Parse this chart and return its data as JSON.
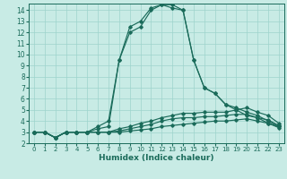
{
  "xlabel": "Humidex (Indice chaleur)",
  "bg_color": "#c8ebe5",
  "grid_color": "#9dd4cc",
  "line_color": "#1a6b5a",
  "xlim": [
    -0.5,
    23.5
  ],
  "ylim": [
    2,
    14.6
  ],
  "xticks": [
    0,
    1,
    2,
    3,
    4,
    5,
    6,
    7,
    8,
    9,
    10,
    11,
    12,
    13,
    14,
    15,
    16,
    17,
    18,
    19,
    20,
    21,
    22,
    23
  ],
  "yticks": [
    2,
    3,
    4,
    5,
    6,
    7,
    8,
    9,
    10,
    11,
    12,
    13,
    14
  ],
  "series": [
    [
      3.0,
      3.0,
      2.5,
      3.0,
      3.0,
      3.0,
      3.5,
      4.0,
      9.5,
      12.0,
      12.5,
      14.0,
      14.5,
      14.5,
      14.0,
      9.5,
      7.0,
      6.5,
      5.5,
      5.2,
      4.8,
      4.5,
      4.0,
      3.5
    ],
    [
      3.0,
      3.0,
      2.5,
      3.0,
      3.0,
      3.0,
      3.3,
      3.5,
      9.5,
      12.5,
      13.0,
      14.2,
      14.5,
      14.2,
      14.0,
      9.5,
      7.0,
      6.5,
      5.5,
      5.0,
      4.5,
      4.3,
      3.8,
      3.5
    ],
    [
      3.0,
      3.0,
      2.5,
      3.0,
      3.0,
      3.0,
      3.0,
      3.0,
      3.3,
      3.5,
      3.8,
      4.0,
      4.3,
      4.5,
      4.7,
      4.7,
      4.8,
      4.8,
      4.8,
      5.0,
      5.2,
      4.8,
      4.5,
      3.8
    ],
    [
      3.0,
      3.0,
      2.5,
      3.0,
      3.0,
      3.0,
      3.0,
      3.0,
      3.1,
      3.3,
      3.5,
      3.7,
      4.0,
      4.2,
      4.3,
      4.3,
      4.4,
      4.4,
      4.5,
      4.6,
      4.6,
      4.3,
      4.1,
      3.6
    ],
    [
      3.0,
      3.0,
      2.5,
      3.0,
      3.0,
      3.0,
      3.0,
      3.0,
      3.0,
      3.1,
      3.2,
      3.3,
      3.5,
      3.6,
      3.7,
      3.8,
      3.9,
      4.0,
      4.0,
      4.1,
      4.2,
      4.0,
      3.8,
      3.4
    ]
  ]
}
